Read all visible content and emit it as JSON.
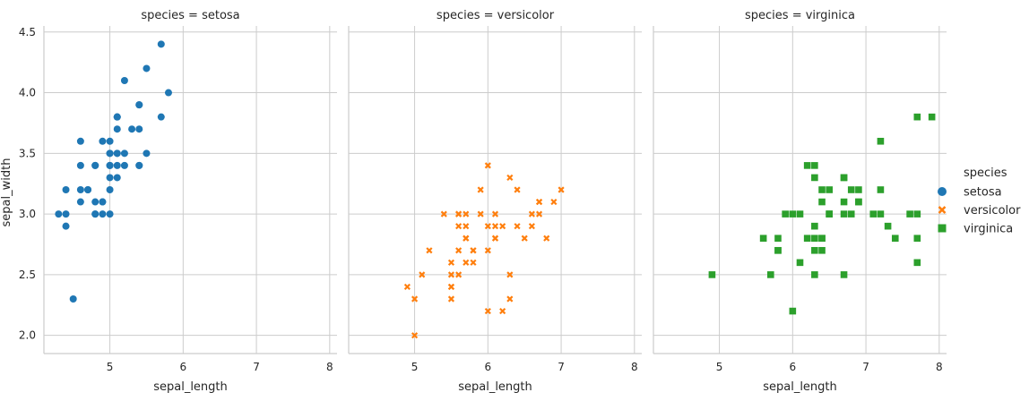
{
  "chart_data": {
    "type": "scatter",
    "x_label": "sepal_length",
    "y_label": "sepal_width",
    "xlim": [
      4.1,
      8.1
    ],
    "ylim": [
      1.85,
      4.55
    ],
    "x_ticks": [
      5,
      6,
      7,
      8
    ],
    "y_ticks": [
      2.0,
      2.5,
      3.0,
      3.5,
      4.0,
      4.5
    ],
    "y_tick_labels": [
      "2.0",
      "2.5",
      "3.0",
      "3.5",
      "4.0",
      "4.5"
    ],
    "grid": true,
    "legend_position": "right",
    "legend_title": "species",
    "panels": [
      {
        "title": "species = setosa",
        "series": "setosa",
        "color": "#1f77b4",
        "marker": "circle",
        "points": [
          [
            5.1,
            3.5
          ],
          [
            4.9,
            3.0
          ],
          [
            4.7,
            3.2
          ],
          [
            4.6,
            3.1
          ],
          [
            5.0,
            3.6
          ],
          [
            5.4,
            3.9
          ],
          [
            4.6,
            3.4
          ],
          [
            5.0,
            3.4
          ],
          [
            4.4,
            2.9
          ],
          [
            4.9,
            3.1
          ],
          [
            5.4,
            3.7
          ],
          [
            4.8,
            3.4
          ],
          [
            4.8,
            3.0
          ],
          [
            4.3,
            3.0
          ],
          [
            5.8,
            4.0
          ],
          [
            5.7,
            4.4
          ],
          [
            5.4,
            3.9
          ],
          [
            5.1,
            3.5
          ],
          [
            5.7,
            3.8
          ],
          [
            5.1,
            3.8
          ],
          [
            5.4,
            3.4
          ],
          [
            5.1,
            3.7
          ],
          [
            4.6,
            3.6
          ],
          [
            5.1,
            3.3
          ],
          [
            4.8,
            3.4
          ],
          [
            5.0,
            3.0
          ],
          [
            5.0,
            3.4
          ],
          [
            5.2,
            3.5
          ],
          [
            5.2,
            3.4
          ],
          [
            4.7,
            3.2
          ],
          [
            4.8,
            3.1
          ],
          [
            5.4,
            3.4
          ],
          [
            5.2,
            4.1
          ],
          [
            5.5,
            4.2
          ],
          [
            4.9,
            3.1
          ],
          [
            5.0,
            3.2
          ],
          [
            5.5,
            3.5
          ],
          [
            4.9,
            3.6
          ],
          [
            4.4,
            3.0
          ],
          [
            5.1,
            3.4
          ],
          [
            5.0,
            3.5
          ],
          [
            4.5,
            2.3
          ],
          [
            4.4,
            3.2
          ],
          [
            5.0,
            3.5
          ],
          [
            5.1,
            3.8
          ],
          [
            4.8,
            3.0
          ],
          [
            5.1,
            3.8
          ],
          [
            4.6,
            3.2
          ],
          [
            5.3,
            3.7
          ],
          [
            5.0,
            3.3
          ]
        ]
      },
      {
        "title": "species = versicolor",
        "series": "versicolor",
        "color": "#ff7f0e",
        "marker": "x",
        "points": [
          [
            7.0,
            3.2
          ],
          [
            6.4,
            3.2
          ],
          [
            6.9,
            3.1
          ],
          [
            5.5,
            2.3
          ],
          [
            6.5,
            2.8
          ],
          [
            5.7,
            2.8
          ],
          [
            6.3,
            3.3
          ],
          [
            4.9,
            2.4
          ],
          [
            6.6,
            2.9
          ],
          [
            5.2,
            2.7
          ],
          [
            5.0,
            2.0
          ],
          [
            5.9,
            3.0
          ],
          [
            6.0,
            2.2
          ],
          [
            6.1,
            2.9
          ],
          [
            5.6,
            2.9
          ],
          [
            6.7,
            3.1
          ],
          [
            5.6,
            3.0
          ],
          [
            5.8,
            2.7
          ],
          [
            6.2,
            2.2
          ],
          [
            5.6,
            2.5
          ],
          [
            5.9,
            3.2
          ],
          [
            6.1,
            2.8
          ],
          [
            6.3,
            2.5
          ],
          [
            6.1,
            2.8
          ],
          [
            6.4,
            2.9
          ],
          [
            6.6,
            3.0
          ],
          [
            6.8,
            2.8
          ],
          [
            6.7,
            3.0
          ],
          [
            6.0,
            2.9
          ],
          [
            5.7,
            2.6
          ],
          [
            5.5,
            2.4
          ],
          [
            5.5,
            2.4
          ],
          [
            5.8,
            2.7
          ],
          [
            6.0,
            2.7
          ],
          [
            5.4,
            3.0
          ],
          [
            6.0,
            3.4
          ],
          [
            6.7,
            3.1
          ],
          [
            6.3,
            2.3
          ],
          [
            5.6,
            3.0
          ],
          [
            5.5,
            2.5
          ],
          [
            5.5,
            2.6
          ],
          [
            6.1,
            3.0
          ],
          [
            5.8,
            2.6
          ],
          [
            5.0,
            2.3
          ],
          [
            5.6,
            2.7
          ],
          [
            5.7,
            3.0
          ],
          [
            5.7,
            2.9
          ],
          [
            6.2,
            2.9
          ],
          [
            5.1,
            2.5
          ],
          [
            5.7,
            2.8
          ]
        ]
      },
      {
        "title": "species = virginica",
        "series": "virginica",
        "color": "#2ca02c",
        "marker": "square",
        "points": [
          [
            6.3,
            3.3
          ],
          [
            5.8,
            2.7
          ],
          [
            7.1,
            3.0
          ],
          [
            6.3,
            2.9
          ],
          [
            6.5,
            3.0
          ],
          [
            7.6,
            3.0
          ],
          [
            4.9,
            2.5
          ],
          [
            7.3,
            2.9
          ],
          [
            6.7,
            2.5
          ],
          [
            7.2,
            3.6
          ],
          [
            6.5,
            3.2
          ],
          [
            6.4,
            2.7
          ],
          [
            6.8,
            3.0
          ],
          [
            5.7,
            2.5
          ],
          [
            5.8,
            2.8
          ],
          [
            6.4,
            3.2
          ],
          [
            6.5,
            3.0
          ],
          [
            7.7,
            3.8
          ],
          [
            7.7,
            2.6
          ],
          [
            6.0,
            2.2
          ],
          [
            6.9,
            3.2
          ],
          [
            5.6,
            2.8
          ],
          [
            7.7,
            2.8
          ],
          [
            6.3,
            2.7
          ],
          [
            6.7,
            3.3
          ],
          [
            7.2,
            3.2
          ],
          [
            6.2,
            2.8
          ],
          [
            6.1,
            3.0
          ],
          [
            6.4,
            2.8
          ],
          [
            7.2,
            3.0
          ],
          [
            7.4,
            2.8
          ],
          [
            7.9,
            3.8
          ],
          [
            6.4,
            2.8
          ],
          [
            6.3,
            2.8
          ],
          [
            6.1,
            2.6
          ],
          [
            7.7,
            3.0
          ],
          [
            6.3,
            3.4
          ],
          [
            6.4,
            3.1
          ],
          [
            6.0,
            3.0
          ],
          [
            6.9,
            3.1
          ],
          [
            6.7,
            3.1
          ],
          [
            6.9,
            3.1
          ],
          [
            5.8,
            2.7
          ],
          [
            6.8,
            3.2
          ],
          [
            6.7,
            3.3
          ],
          [
            6.7,
            3.0
          ],
          [
            6.3,
            2.5
          ],
          [
            6.5,
            3.0
          ],
          [
            6.2,
            3.4
          ],
          [
            5.9,
            3.0
          ]
        ]
      }
    ]
  }
}
